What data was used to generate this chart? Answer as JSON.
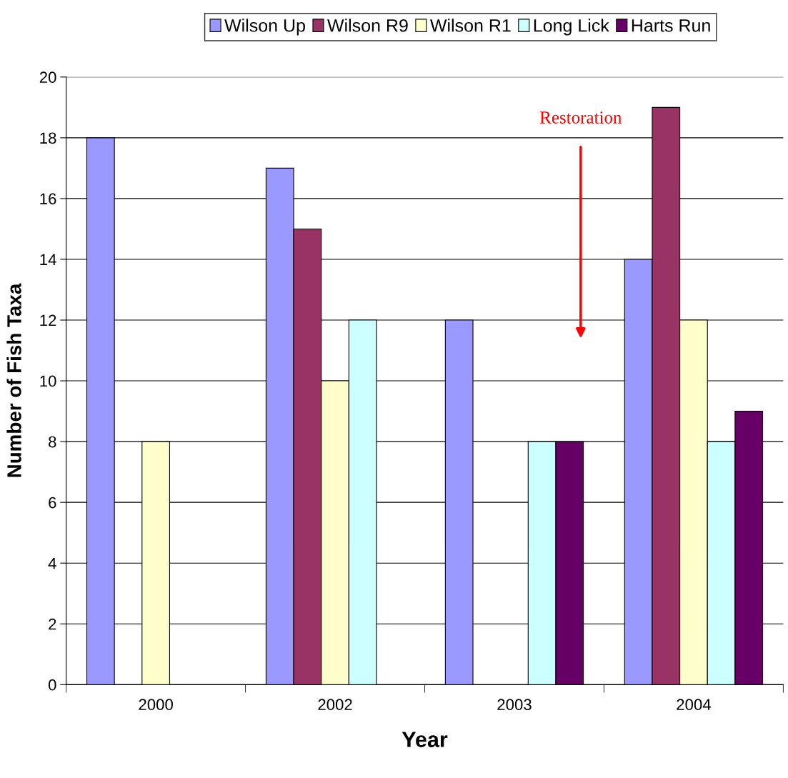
{
  "chart_data": {
    "type": "bar",
    "xlabel": "Year",
    "ylabel": "Number of Fish Taxa",
    "categories": [
      "2000",
      "2002",
      "2003",
      "2004"
    ],
    "series": [
      {
        "name": "Wilson Up",
        "color": "#9999ff",
        "values": [
          18,
          17,
          12,
          14
        ]
      },
      {
        "name": "Wilson R9",
        "color": "#993366",
        "values": [
          null,
          15,
          null,
          19
        ]
      },
      {
        "name": "Wilson R1",
        "color": "#ffffcc",
        "values": [
          8,
          10,
          null,
          12
        ]
      },
      {
        "name": "Long Lick",
        "color": "#ccffff",
        "values": [
          null,
          12,
          8,
          8
        ]
      },
      {
        "name": "Harts Run",
        "color": "#660066",
        "values": [
          null,
          null,
          8,
          9
        ]
      }
    ],
    "ylim": [
      0,
      20
    ],
    "yticks": [
      0,
      2,
      4,
      6,
      8,
      10,
      12,
      14,
      16,
      18,
      20
    ],
    "grid": "y",
    "legend": "top",
    "annotations": [
      "Restoration"
    ]
  }
}
